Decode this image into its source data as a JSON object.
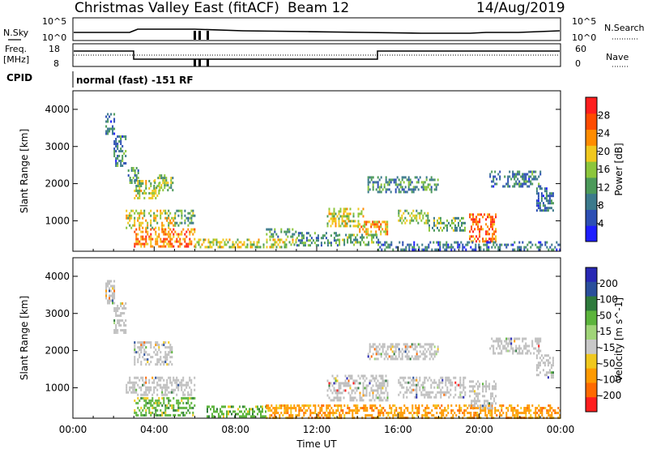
{
  "header": {
    "station": "Christmas Valley East (fitACF)",
    "beam": "Beam 12",
    "date": "14/Aug/2019"
  },
  "strips": {
    "nsky_label": "N.Sky",
    "nsky_ticks": [
      "10^5",
      "10^0"
    ],
    "nsearch_label": "N.Search",
    "nsearch_ticks": [
      "10^5",
      "10^0"
    ],
    "freq_label_1": "Freq.",
    "freq_label_2": "[MHz]",
    "freq_ticks": [
      "18",
      "8"
    ],
    "nave_label": "Nave",
    "nave_ticks": [
      "60",
      "0"
    ],
    "cpid_label": "CPID",
    "cpid_text": "normal (fast) -151 RF"
  },
  "colors": {
    "power_scale": [
      "#1e1eff",
      "#2d4fb4",
      "#3c7a8c",
      "#4c9a5a",
      "#8cc63c",
      "#f0c81e",
      "#ff8c00",
      "#ff4b00",
      "#ff1e1e"
    ],
    "velocity_scale": [
      "#2828b4",
      "#2a4f9c",
      "#2e7a3c",
      "#5cb43c",
      "#a0d478",
      "#c8c8c8",
      "#f0c81e",
      "#ff9a00",
      "#ff6a00",
      "#ff1e1e"
    ],
    "ground_scatter": "#bfbfbf"
  },
  "chart_data": [
    {
      "type": "heatmap",
      "name": "power",
      "ylabel": "Slant Range [km]",
      "colorbar_label": "Power [dB]",
      "colorbar_ticks": [
        "4",
        "8",
        "12",
        "16",
        "20",
        "24",
        "28"
      ],
      "ylim": [
        180,
        4500
      ],
      "yticks": [
        "1000",
        "2000",
        "3000",
        "4000"
      ],
      "clim": [
        0,
        32
      ],
      "xlim_hours": [
        0,
        24
      ],
      "regions": [
        {
          "t": [
            1.6,
            2.0
          ],
          "r": [
            3300,
            3900
          ],
          "v": 8
        },
        {
          "t": [
            2.0,
            2.6
          ],
          "r": [
            2500,
            3300
          ],
          "v": 9
        },
        {
          "t": [
            2.7,
            3.2
          ],
          "r": [
            2000,
            2450
          ],
          "v": 10
        },
        {
          "t": [
            3.0,
            4.2
          ],
          "r": [
            1600,
            2100
          ],
          "v": 16
        },
        {
          "t": [
            4.0,
            4.9
          ],
          "r": [
            1800,
            2250
          ],
          "v": 15
        },
        {
          "t": [
            2.6,
            5.0
          ],
          "r": [
            800,
            1300
          ],
          "v": 18
        },
        {
          "t": [
            3.0,
            6.0
          ],
          "r": [
            300,
            800
          ],
          "v": 24
        },
        {
          "t": [
            5.0,
            6.0
          ],
          "r": [
            900,
            1300
          ],
          "v": 12
        },
        {
          "t": [
            6.0,
            11.0
          ],
          "r": [
            300,
            520
          ],
          "v": 17
        },
        {
          "t": [
            9.5,
            11.0
          ],
          "r": [
            550,
            800
          ],
          "v": 12
        },
        {
          "t": [
            11.0,
            13.0
          ],
          "r": [
            350,
            700
          ],
          "v": 10
        },
        {
          "t": [
            12.5,
            14.3
          ],
          "r": [
            850,
            1350
          ],
          "v": 18
        },
        {
          "t": [
            14.0,
            15.5
          ],
          "r": [
            650,
            1000
          ],
          "v": 22
        },
        {
          "t": [
            13.0,
            15.0
          ],
          "r": [
            350,
            650
          ],
          "v": 14
        },
        {
          "t": [
            14.5,
            18.0
          ],
          "r": [
            1800,
            2200
          ],
          "v": 11
        },
        {
          "t": [
            16.0,
            17.5
          ],
          "r": [
            950,
            1300
          ],
          "v": 15
        },
        {
          "t": [
            17.5,
            19.3
          ],
          "r": [
            750,
            1100
          ],
          "v": 13
        },
        {
          "t": [
            19.5,
            20.8
          ],
          "r": [
            450,
            1200
          ],
          "v": 26
        },
        {
          "t": [
            20.5,
            23.0
          ],
          "r": [
            1900,
            2350
          ],
          "v": 9
        },
        {
          "t": [
            22.8,
            23.6
          ],
          "r": [
            1300,
            1900
          ],
          "v": 8
        },
        {
          "t": [
            15.0,
            24.0
          ],
          "r": [
            250,
            450
          ],
          "v": 8
        }
      ]
    },
    {
      "type": "heatmap",
      "name": "velocity",
      "ylabel": "Slant Range [km]",
      "xlabel": "Time UT",
      "colorbar_label": "Velocity [m s^-1]",
      "colorbar_ticks": [
        "200",
        "100",
        "50",
        "15",
        "-15",
        "-50",
        "-100",
        "-200"
      ],
      "ylim": [
        180,
        4500
      ],
      "yticks": [
        "1000",
        "2000",
        "3000",
        "4000"
      ],
      "xticks": [
        "00:00",
        "04:00",
        "08:00",
        "12:00",
        "16:00",
        "20:00",
        "00:00"
      ],
      "xlim_hours": [
        0,
        24
      ],
      "regions": [
        {
          "t": [
            1.6,
            2.0
          ],
          "r": [
            3300,
            3900
          ],
          "c": "ground"
        },
        {
          "t": [
            2.0,
            2.6
          ],
          "r": [
            2500,
            3300
          ],
          "c": "ground"
        },
        {
          "t": [
            3.0,
            4.9
          ],
          "r": [
            1600,
            2250
          ],
          "c": "ground"
        },
        {
          "t": [
            2.6,
            6.0
          ],
          "r": [
            800,
            1300
          ],
          "c": "ground"
        },
        {
          "t": [
            3.0,
            6.0
          ],
          "r": [
            250,
            750
          ],
          "c": "green"
        },
        {
          "t": [
            6.5,
            9.5
          ],
          "r": [
            250,
            520
          ],
          "c": "green"
        },
        {
          "t": [
            9.5,
            24.0
          ],
          "r": [
            220,
            550
          ],
          "c": "orange"
        },
        {
          "t": [
            12.5,
            15.5
          ],
          "r": [
            650,
            1350
          ],
          "c": "ground"
        },
        {
          "t": [
            14.5,
            18.0
          ],
          "r": [
            1800,
            2200
          ],
          "c": "ground"
        },
        {
          "t": [
            16.0,
            19.3
          ],
          "r": [
            750,
            1300
          ],
          "c": "ground"
        },
        {
          "t": [
            19.5,
            20.8
          ],
          "r": [
            450,
            1200
          ],
          "c": "ground"
        },
        {
          "t": [
            20.5,
            23.0
          ],
          "r": [
            1900,
            2350
          ],
          "c": "ground"
        },
        {
          "t": [
            22.8,
            23.6
          ],
          "r": [
            1300,
            1900
          ],
          "c": "ground"
        }
      ]
    }
  ]
}
